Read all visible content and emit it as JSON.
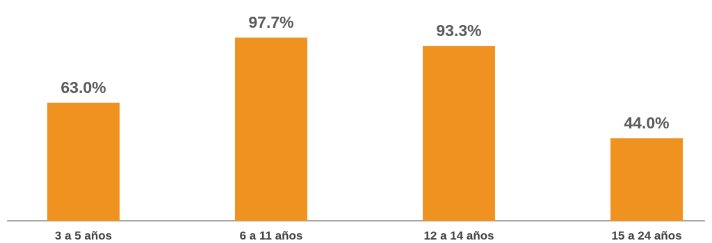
{
  "chart_data": {
    "type": "bar",
    "categories": [
      "3 a 5 años",
      "6 a 11 años",
      "12 a 14 años",
      "15 a 24 años"
    ],
    "values": [
      63.0,
      97.7,
      93.3,
      44.0
    ],
    "value_labels": [
      "63.0%",
      "97.7%",
      "93.3%",
      "44.0%"
    ],
    "ylim": [
      0,
      100
    ],
    "grid": false,
    "legend": "none"
  },
  "colors": {
    "bar": "#F0921F",
    "value_label": "#5a5a5a",
    "category_label": "#3f3f3f",
    "axis": "#8a8a8a"
  }
}
